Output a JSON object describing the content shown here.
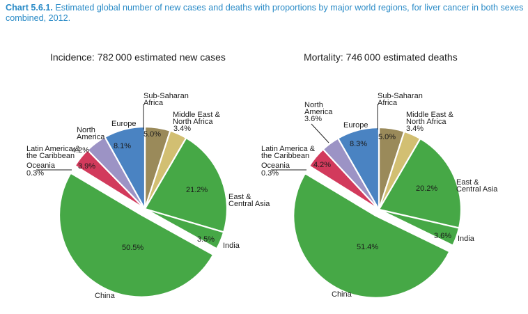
{
  "caption": {
    "label": "Chart 5.6.1.",
    "text": "Estimated global number of new cases and deaths with proportions by major world regions, for liver cancer in both sexes combined, 2012."
  },
  "colors": {
    "europe": "#4a83c2",
    "north_america": "#9c93c5",
    "latin_america": "#d23a5c",
    "oceania": "#5b9bd5",
    "sub_saharan_africa": "#9a8a5a",
    "middle_east": "#d2bf72",
    "asia": "#46a846",
    "caption": "#2a8bc7"
  },
  "chart_data": [
    {
      "type": "pie",
      "title": "Incidence: 782 000 estimated new cases",
      "series": [
        {
          "name": "Sub-Saharan Africa",
          "value": 5.0,
          "label": "5.0%",
          "color": "#9a8a5a"
        },
        {
          "name": "Middle East & North Africa",
          "value": 3.4,
          "label": "3.4%",
          "color": "#d2bf72"
        },
        {
          "name": "East & Central Asia",
          "value": 21.2,
          "label": "21.2%",
          "color": "#46a846"
        },
        {
          "name": "India",
          "value": 3.5,
          "label": "3.5%",
          "color": "#46a846"
        },
        {
          "name": "China",
          "value": 50.5,
          "label": "50.5%",
          "color": "#46a846"
        },
        {
          "name": "Oceania",
          "value": 0.3,
          "label": "0.3%",
          "color": "#5b9bd5"
        },
        {
          "name": "Latin America & the Caribbean",
          "value": 3.9,
          "label": "3.9%",
          "color": "#d23a5c"
        },
        {
          "name": "North America",
          "value": 4.2,
          "label": "4.2%",
          "color": "#9c93c5"
        },
        {
          "name": "Europe",
          "value": 8.1,
          "label": "8.1%",
          "color": "#4a83c2"
        }
      ]
    },
    {
      "type": "pie",
      "title": "Mortality: 746 000 estimated deaths",
      "series": [
        {
          "name": "Sub-Saharan Africa",
          "value": 5.0,
          "label": "5.0%",
          "color": "#9a8a5a"
        },
        {
          "name": "Middle East & North Africa",
          "value": 3.4,
          "label": "3.4%",
          "color": "#d2bf72"
        },
        {
          "name": "East & Central Asia",
          "value": 20.2,
          "label": "20.2%",
          "color": "#46a846"
        },
        {
          "name": "India",
          "value": 3.6,
          "label": "3.6%",
          "color": "#46a846"
        },
        {
          "name": "China",
          "value": 51.4,
          "label": "51.4%",
          "color": "#46a846"
        },
        {
          "name": "Oceania",
          "value": 0.3,
          "label": "0.3%",
          "color": "#5b9bd5"
        },
        {
          "name": "Latin America & the Caribbean",
          "value": 4.2,
          "label": "4.2%",
          "color": "#d23a5c"
        },
        {
          "name": "North America",
          "value": 3.6,
          "label": "3.6%",
          "color": "#9c93c5"
        },
        {
          "name": "Europe",
          "value": 8.3,
          "label": "8.3%",
          "color": "#4a83c2"
        }
      ]
    }
  ],
  "region_labels": {
    "europe": "Europe",
    "north_america": [
      "North",
      "America"
    ],
    "latin_america": [
      "Latin America &",
      "the Caribbean"
    ],
    "oceania": "Oceania",
    "sub_saharan_africa": [
      "Sub-Saharan",
      "Africa"
    ],
    "middle_east": [
      "Middle East &",
      "North Africa"
    ],
    "east_central_asia": [
      "East &",
      "Central Asia"
    ],
    "india": "India",
    "china": "China"
  }
}
